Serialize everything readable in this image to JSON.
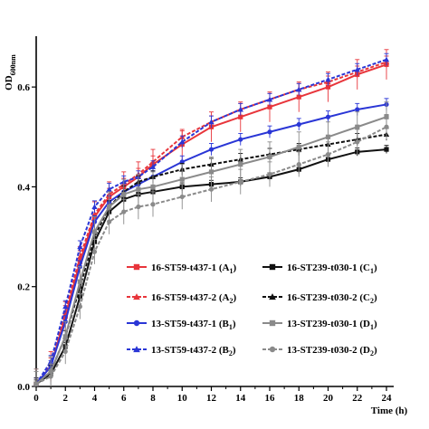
{
  "chart_data": {
    "type": "line",
    "ylabel": "OD",
    "ylabel_sub": "600nm",
    "xlabel": "Time (h)",
    "xlim": [
      0,
      24
    ],
    "ylim": [
      0,
      0.7
    ],
    "x_ticks": [
      "0",
      "2",
      "4",
      "6",
      "8",
      "10",
      "12",
      "14",
      "16",
      "18",
      "20",
      "22",
      "24"
    ],
    "y_ticks": [
      "0.0",
      "0.2",
      "0.4",
      "0.6"
    ],
    "legend_position": "bottom-right",
    "grid": false,
    "series": [
      {
        "name": "16-ST59-t437-1 (A",
        "sub": "1",
        "name_tail": ")",
        "color": "#e8353b",
        "marker": "square",
        "dashed": false,
        "error": 0.03,
        "x": [
          0,
          1,
          2,
          3,
          4,
          5,
          6,
          7,
          8,
          10,
          12,
          14,
          16,
          18,
          20,
          22,
          24
        ],
        "y": [
          0.005,
          0.04,
          0.14,
          0.25,
          0.34,
          0.38,
          0.4,
          0.42,
          0.445,
          0.485,
          0.52,
          0.54,
          0.56,
          0.58,
          0.6,
          0.625,
          0.645
        ]
      },
      {
        "name": "16-ST59-t437-2 (A",
        "sub": "2",
        "name_tail": ")",
        "color": "#e8353b",
        "marker": "triangle",
        "dashed": true,
        "error": 0.012,
        "x": [
          0,
          1,
          2,
          3,
          4,
          5,
          6,
          7,
          8,
          10,
          12,
          14,
          16,
          18,
          20,
          22,
          24
        ],
        "y": [
          0.005,
          0.045,
          0.15,
          0.26,
          0.345,
          0.385,
          0.405,
          0.425,
          0.45,
          0.5,
          0.53,
          0.555,
          0.575,
          0.595,
          0.61,
          0.63,
          0.65
        ]
      },
      {
        "name": "13-ST59-t437-1 (B",
        "sub": "1",
        "name_tail": ")",
        "color": "#2a36d6",
        "marker": "circle",
        "dashed": false,
        "error": 0.012,
        "x": [
          0,
          1,
          2,
          3,
          4,
          5,
          6,
          7,
          8,
          10,
          12,
          14,
          16,
          18,
          20,
          22,
          24
        ],
        "y": [
          0.005,
          0.04,
          0.13,
          0.24,
          0.33,
          0.37,
          0.39,
          0.405,
          0.42,
          0.45,
          0.475,
          0.495,
          0.51,
          0.525,
          0.54,
          0.555,
          0.565
        ]
      },
      {
        "name": "13-ST59-t437-2 (B",
        "sub": "2",
        "name_tail": ")",
        "color": "#2a36d6",
        "marker": "triangle",
        "dashed": true,
        "error": 0.012,
        "x": [
          0,
          1,
          2,
          3,
          4,
          5,
          6,
          7,
          8,
          10,
          12,
          14,
          16,
          18,
          20,
          22,
          24
        ],
        "y": [
          0.005,
          0.05,
          0.16,
          0.28,
          0.36,
          0.395,
          0.41,
          0.42,
          0.44,
          0.49,
          0.53,
          0.555,
          0.575,
          0.595,
          0.615,
          0.635,
          0.655
        ]
      },
      {
        "name": "16-ST239-t030-1 (C",
        "sub": "1",
        "name_tail": ")",
        "color": "#111111",
        "marker": "square",
        "dashed": false,
        "error": 0.008,
        "x": [
          0,
          1,
          2,
          3,
          4,
          5,
          6,
          7,
          8,
          10,
          12,
          14,
          16,
          18,
          20,
          22,
          24
        ],
        "y": [
          0.005,
          0.025,
          0.08,
          0.18,
          0.29,
          0.35,
          0.375,
          0.385,
          0.39,
          0.4,
          0.405,
          0.41,
          0.42,
          0.435,
          0.455,
          0.47,
          0.475
        ]
      },
      {
        "name": "16-ST239-t030-2 (C",
        "sub": "2",
        "name_tail": ")",
        "color": "#111111",
        "marker": "triangle",
        "dashed": true,
        "error": 0.012,
        "x": [
          0,
          1,
          2,
          3,
          4,
          5,
          6,
          7,
          8,
          10,
          12,
          14,
          16,
          18,
          20,
          22,
          24
        ],
        "y": [
          0.005,
          0.03,
          0.1,
          0.2,
          0.3,
          0.36,
          0.39,
          0.41,
          0.42,
          0.435,
          0.445,
          0.455,
          0.465,
          0.475,
          0.485,
          0.495,
          0.505
        ]
      },
      {
        "name": "13-ST239-t030-1 (D",
        "sub": "1",
        "name_tail": ")",
        "color": "#8a8a8a",
        "marker": "square",
        "dashed": false,
        "error": 0.03,
        "x": [
          0,
          1,
          2,
          3,
          4,
          5,
          6,
          7,
          8,
          10,
          12,
          14,
          16,
          18,
          20,
          22,
          24
        ],
        "y": [
          0.005,
          0.03,
          0.1,
          0.21,
          0.31,
          0.36,
          0.385,
          0.395,
          0.4,
          0.415,
          0.43,
          0.445,
          0.46,
          0.48,
          0.5,
          0.52,
          0.54
        ]
      },
      {
        "name": "13-ST239-t030-2 (D",
        "sub": "2",
        "name_tail": ")",
        "color": "#8a8a8a",
        "marker": "circle",
        "dashed": true,
        "error": 0.025,
        "x": [
          0,
          1,
          2,
          3,
          4,
          5,
          6,
          7,
          8,
          10,
          12,
          14,
          16,
          18,
          20,
          22,
          24
        ],
        "y": [
          0.005,
          0.02,
          0.07,
          0.16,
          0.27,
          0.33,
          0.35,
          0.36,
          0.365,
          0.38,
          0.395,
          0.41,
          0.425,
          0.445,
          0.465,
          0.49,
          0.52
        ]
      }
    ]
  }
}
